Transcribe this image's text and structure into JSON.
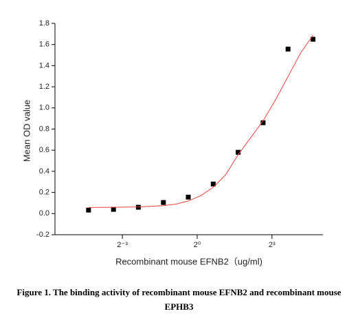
{
  "chart_data": {
    "type": "scatter",
    "x_label": "Recombinant mouse  EFNB2（ug/ml)",
    "y_label": "Mean OD value",
    "caption": "Figure 1. The binding activity of recombinant mouse EFNB2 and recombinant mouse EPHB3",
    "xscale": "log2",
    "xlim": [
      0.0192,
      33
    ],
    "xticks": [
      {
        "value": 0.125,
        "label": "2⁻³"
      },
      {
        "value": 1,
        "label": "2⁰"
      },
      {
        "value": 8,
        "label": "2³"
      }
    ],
    "ylim": [
      -0.2,
      1.8
    ],
    "yticks": [
      -0.2,
      {
        "value": 0,
        "label": "0.0"
      },
      0.2,
      0.4,
      0.6,
      0.8,
      {
        "value": 1,
        "label": "1.0"
      },
      1.2,
      1.4,
      1.6,
      1.8
    ],
    "series": [
      {
        "color": "#000000",
        "mode": "markers",
        "x": [
          0.0488,
          0.0977,
          0.195,
          0.391,
          0.781,
          1.5625,
          3.125,
          6.25,
          12.5,
          25
        ],
        "values": [
          0.033,
          0.04,
          0.06,
          0.105,
          0.156,
          0.28,
          0.58,
          0.86,
          1.557,
          1.65
        ]
      },
      {
        "color": "#e8413a",
        "mode": "line",
        "x": [
          0.049,
          0.098,
          0.196,
          0.392,
          0.555,
          0.785,
          1.11,
          1.57,
          2.22,
          3.14,
          4.44,
          6.28,
          8.88,
          12.55,
          17.75,
          25.1
        ],
        "values": [
          0.058,
          0.06,
          0.063,
          0.075,
          0.09,
          0.12,
          0.17,
          0.25,
          0.37,
          0.56,
          0.72,
          0.88,
          1.08,
          1.3,
          1.52,
          1.69
        ]
      }
    ]
  }
}
